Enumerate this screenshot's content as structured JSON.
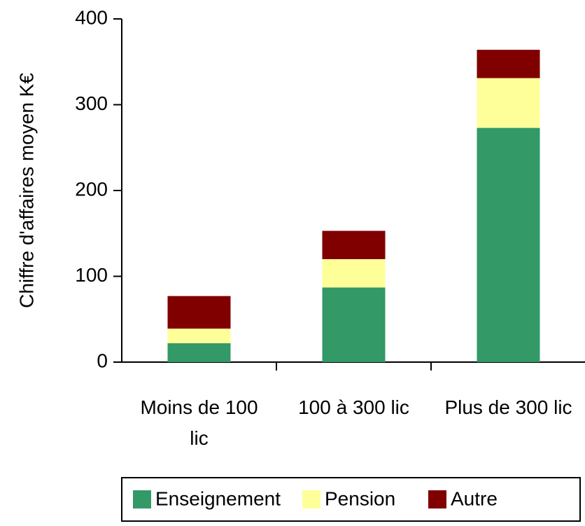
{
  "chart_data": {
    "type": "stacked_bar",
    "y_label": "Chiffre d'affaires moyen K€",
    "categories": [
      "Moins de 100 lic",
      "100 à 300 lic",
      "Plus de 300 lic"
    ],
    "series": [
      {
        "name": "Enseignement",
        "color": "#339966",
        "values": [
          22,
          87,
          273
        ]
      },
      {
        "name": "Pension",
        "color": "#ffff99",
        "values": [
          17,
          33,
          58
        ]
      },
      {
        "name": "Autre",
        "color": "#800000",
        "values": [
          38,
          33,
          33
        ]
      }
    ],
    "ylim": [
      0,
      400
    ],
    "yticks": [
      0,
      100,
      200,
      300,
      400
    ],
    "grid": false,
    "legend": "bottom"
  }
}
